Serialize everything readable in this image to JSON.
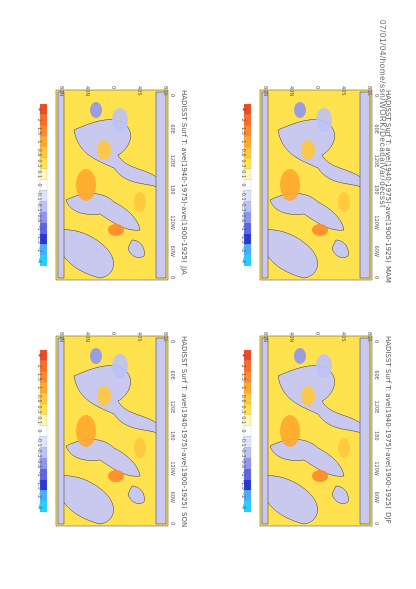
{
  "page_header": "07/01/04/home/ssn/WORK/DecadalVar/decsst",
  "colors": {
    "land": "#c9c9ef",
    "ocean_base": "#ffe24d",
    "coast": "#333333",
    "scale": [
      "#22d0ff",
      "#45b0ff",
      "#2a36d8",
      "#5e66e6",
      "#8f96f0",
      "#bdc2f6",
      "#e0e2fb",
      "#ffffff",
      "#fff7b6",
      "#ffe24d",
      "#ffc83c",
      "#ffa82e",
      "#ff8a2a",
      "#ff6c26",
      "#f04a1e"
    ]
  },
  "chart_data": [
    {
      "type": "heatmap",
      "season": "DJF",
      "title": "HADISST Surf T: ave(1940-1975)-ave(1900-1925)",
      "lat_labels": [
        "80N",
        "40N",
        "0",
        "40S",
        "80S"
      ],
      "lon_labels": [
        "0",
        "60E",
        "120E",
        "180",
        "120W",
        "60W",
        "0"
      ],
      "colorbar_ticks": [
        "-4",
        "-2",
        "-1.5",
        "-1",
        "-0.6",
        "-0.3",
        "-0.1",
        "0",
        "0.1",
        "0.3",
        "0.6",
        "1",
        "1.5",
        "2",
        "4"
      ],
      "colorbar_end_labels": [
        "-4",
        "4"
      ]
    },
    {
      "type": "heatmap",
      "season": "MAM",
      "title": "HADISST Surf T: ave(1940-1975)-ave(1900-1925)",
      "lat_labels": [
        "80N",
        "40N",
        "0",
        "40S",
        "80S"
      ],
      "lon_labels": [
        "0",
        "60E",
        "120E",
        "180",
        "120W",
        "60W",
        "0"
      ],
      "colorbar_ticks": [
        "-4",
        "-2",
        "-1.5",
        "-1",
        "-0.6",
        "-0.3",
        "-0.1",
        "0",
        "0.1",
        "0.3",
        "0.6",
        "1",
        "1.5",
        "2",
        "4"
      ],
      "colorbar_end_labels": [
        "-4",
        "4"
      ]
    },
    {
      "type": "heatmap",
      "season": "JJA",
      "title": "HADISST Surf T: ave(1940-1975)-ave(1900-1925)",
      "lat_labels": [
        "80N",
        "40N",
        "0",
        "40S",
        "80S"
      ],
      "lon_labels": [
        "0",
        "60E",
        "120E",
        "180",
        "120W",
        "60W",
        "0"
      ],
      "colorbar_ticks": [
        "-4",
        "-2",
        "-1.5",
        "-1",
        "-0.6",
        "-0.3",
        "-0.1",
        "0",
        "0.1",
        "0.3",
        "0.6",
        "1",
        "1.5",
        "2",
        "4"
      ],
      "colorbar_end_labels": [
        "-4",
        "4"
      ]
    },
    {
      "type": "heatmap",
      "season": "SON",
      "title": "HADISST Surf T: ave(1940-1975)-ave(1900-1925)",
      "lat_labels": [
        "80N",
        "40N",
        "0",
        "40S",
        "80S"
      ],
      "lon_labels": [
        "0",
        "60E",
        "120E",
        "180",
        "120W",
        "60W",
        "0"
      ],
      "colorbar_ticks": [
        "-4",
        "-2",
        "-1.5",
        "-1",
        "-0.6",
        "-0.3",
        "-0.1",
        "0",
        "0.1",
        "0.3",
        "0.6",
        "1",
        "1.5",
        "2",
        "4"
      ],
      "colorbar_end_labels": [
        "-4",
        "4"
      ]
    }
  ]
}
